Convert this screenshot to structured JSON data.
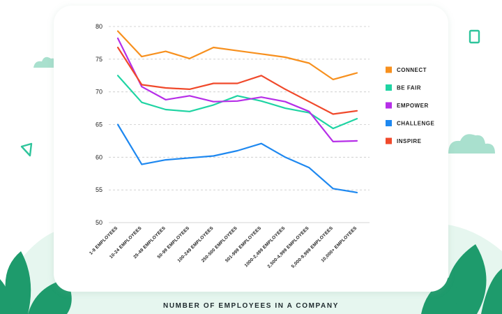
{
  "chart_data": {
    "type": "line",
    "title": "",
    "xlabel": "NUMBER OF EMPLOYEES IN A COMPANY",
    "ylabel": "",
    "ylim": [
      50,
      80
    ],
    "yticks": [
      50,
      55,
      60,
      65,
      70,
      75,
      80
    ],
    "grid": true,
    "legend_position": "right",
    "categories": [
      "1-9 EMPLOYEES",
      "10-24 EMPLOYEES",
      "25-49 EMPLOYEES",
      "50-99 EMPLOYEES",
      "100-249 EMPLOYEES",
      "250-500 EMPLOYEES",
      "501-999 EMPLOYEES",
      "1000-2,499 EMPLOYEES",
      "2,500-4,999 EMPLOYEES",
      "5,000-9,999 EMPLOYEES",
      "10,000+ EMPLOYEES"
    ],
    "series": [
      {
        "name": "CONNECT",
        "color": "#f7901e",
        "values": [
          79.3,
          75.4,
          76.2,
          75.1,
          76.8,
          76.3,
          75.8,
          75.3,
          74.4,
          71.9,
          72.9
        ]
      },
      {
        "name": "BE FAIR",
        "color": "#1fd4a3",
        "values": [
          72.5,
          68.4,
          67.3,
          67.0,
          68.0,
          69.4,
          68.6,
          67.5,
          66.8,
          64.4,
          65.9
        ]
      },
      {
        "name": "EMPOWER",
        "color": "#b62ee8",
        "values": [
          78.2,
          70.8,
          68.8,
          69.4,
          68.5,
          68.6,
          69.2,
          68.5,
          67.0,
          62.4,
          62.5
        ]
      },
      {
        "name": "CHALLENGE",
        "color": "#1e88f0",
        "values": [
          65.0,
          58.9,
          59.6,
          59.9,
          60.2,
          61.0,
          62.1,
          60.0,
          58.4,
          55.2,
          54.6
        ]
      },
      {
        "name": "INSPIRE",
        "color": "#f0492b",
        "values": [
          76.8,
          71.1,
          70.6,
          70.4,
          71.3,
          71.3,
          72.5,
          70.4,
          68.5,
          66.6,
          67.1
        ]
      }
    ]
  },
  "decor": {
    "leaf_color": "#1e9b6c",
    "cloud_color": "#a7dfcd",
    "mint_bg": "#e3f5ee",
    "accent": "#2ec49b"
  }
}
